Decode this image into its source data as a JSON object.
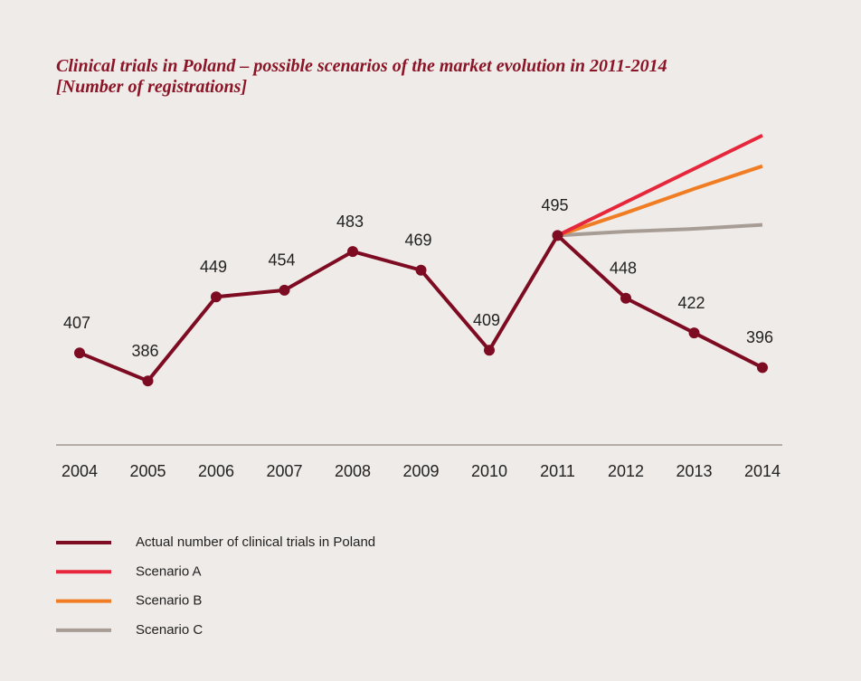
{
  "chart_data": {
    "type": "line",
    "title": "Clinical trials in Poland – possible scenarios of the market evolution in 2011-2014 [Number of registrations]",
    "categories": [
      "2004",
      "2005",
      "2006",
      "2007",
      "2008",
      "2009",
      "2010",
      "2011",
      "2012",
      "2013",
      "2014"
    ],
    "series": [
      {
        "name": "Actual number of  clinical trials in Poland",
        "color": "#7d0b22",
        "values": [
          407,
          386,
          449,
          454,
          483,
          469,
          409,
          495,
          448,
          422,
          396
        ]
      },
      {
        "name": "Scenario A",
        "color": "#e5263b",
        "values": [
          null,
          null,
          null,
          null,
          null,
          null,
          null,
          495,
          520,
          545,
          570
        ]
      },
      {
        "name": "Scenario B",
        "color": "#f07d23",
        "values": [
          null,
          null,
          null,
          null,
          null,
          null,
          null,
          495,
          512,
          530,
          547
        ]
      },
      {
        "name": "Scenario C",
        "color": "#a89d95",
        "values": [
          null,
          null,
          null,
          null,
          null,
          null,
          null,
          495,
          498,
          500,
          503
        ]
      }
    ],
    "ylim": [
      338,
      580
    ]
  }
}
